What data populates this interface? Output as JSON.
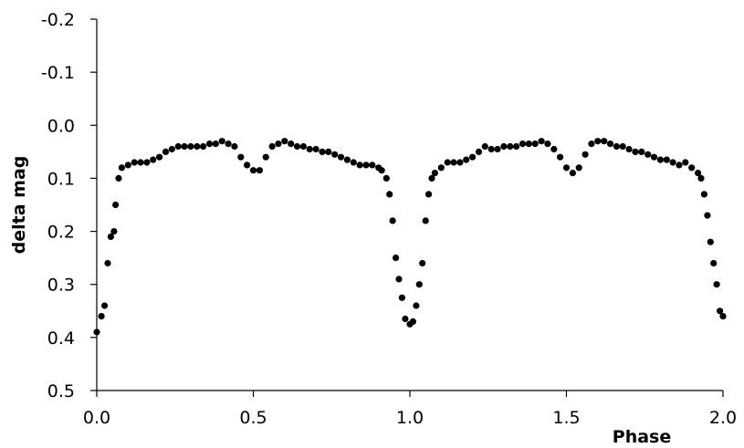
{
  "chart_data": {
    "type": "scatter",
    "title": "",
    "xlabel": "Phase",
    "ylabel": "delta mag",
    "xlim": [
      0.0,
      2.0
    ],
    "ylim": [
      -0.2,
      0.5
    ],
    "y_inverted": true,
    "grid": false,
    "legend": "none",
    "x_ticks": [
      "0.0",
      "0.5",
      "1.0",
      "1.5",
      "2.0"
    ],
    "x_tick_values": [
      0.0,
      0.5,
      1.0,
      1.5,
      2.0
    ],
    "y_ticks": [
      "-0.2",
      "-0.1",
      "0.0",
      "0.1",
      "0.2",
      "0.3",
      "0.4",
      "0.5"
    ],
    "y_tick_values": [
      -0.2,
      -0.1,
      0.0,
      0.1,
      0.2,
      0.3,
      0.4,
      0.5
    ],
    "marker_color": "#000000",
    "series": [
      {
        "points": [
          [
            0.0,
            0.39
          ],
          [
            0.015,
            0.36
          ],
          [
            0.025,
            0.34
          ],
          [
            0.035,
            0.26
          ],
          [
            0.045,
            0.21
          ],
          [
            0.055,
            0.2
          ],
          [
            0.06,
            0.15
          ],
          [
            0.07,
            0.1
          ],
          [
            0.08,
            0.08
          ],
          [
            0.1,
            0.075
          ],
          [
            0.12,
            0.07
          ],
          [
            0.14,
            0.07
          ],
          [
            0.16,
            0.07
          ],
          [
            0.18,
            0.065
          ],
          [
            0.2,
            0.06
          ],
          [
            0.22,
            0.05
          ],
          [
            0.24,
            0.045
          ],
          [
            0.26,
            0.04
          ],
          [
            0.28,
            0.04
          ],
          [
            0.3,
            0.04
          ],
          [
            0.32,
            0.04
          ],
          [
            0.34,
            0.04
          ],
          [
            0.36,
            0.035
          ],
          [
            0.38,
            0.035
          ],
          [
            0.4,
            0.03
          ],
          [
            0.42,
            0.035
          ],
          [
            0.44,
            0.04
          ],
          [
            0.46,
            0.06
          ],
          [
            0.48,
            0.075
          ],
          [
            0.5,
            0.085
          ],
          [
            0.52,
            0.085
          ],
          [
            0.54,
            0.06
          ],
          [
            0.56,
            0.04
          ],
          [
            0.58,
            0.035
          ],
          [
            0.6,
            0.03
          ],
          [
            0.62,
            0.035
          ],
          [
            0.64,
            0.04
          ],
          [
            0.66,
            0.04
          ],
          [
            0.68,
            0.045
          ],
          [
            0.7,
            0.045
          ],
          [
            0.72,
            0.05
          ],
          [
            0.74,
            0.05
          ],
          [
            0.76,
            0.055
          ],
          [
            0.78,
            0.06
          ],
          [
            0.8,
            0.065
          ],
          [
            0.82,
            0.07
          ],
          [
            0.84,
            0.075
          ],
          [
            0.86,
            0.075
          ],
          [
            0.88,
            0.075
          ],
          [
            0.9,
            0.08
          ],
          [
            0.91,
            0.085
          ],
          [
            0.925,
            0.1
          ],
          [
            0.935,
            0.13
          ],
          [
            0.945,
            0.18
          ],
          [
            0.955,
            0.25
          ],
          [
            0.965,
            0.29
          ],
          [
            0.975,
            0.325
          ],
          [
            0.985,
            0.365
          ],
          [
            1.0,
            0.375
          ],
          [
            1.01,
            0.37
          ],
          [
            1.02,
            0.34
          ],
          [
            1.03,
            0.3
          ],
          [
            1.04,
            0.26
          ],
          [
            1.05,
            0.18
          ],
          [
            1.06,
            0.13
          ],
          [
            1.07,
            0.1
          ],
          [
            1.08,
            0.09
          ],
          [
            1.1,
            0.08
          ],
          [
            1.12,
            0.07
          ],
          [
            1.14,
            0.07
          ],
          [
            1.16,
            0.07
          ],
          [
            1.18,
            0.065
          ],
          [
            1.2,
            0.06
          ],
          [
            1.22,
            0.05
          ],
          [
            1.24,
            0.04
          ],
          [
            1.26,
            0.045
          ],
          [
            1.28,
            0.045
          ],
          [
            1.3,
            0.04
          ],
          [
            1.32,
            0.04
          ],
          [
            1.34,
            0.04
          ],
          [
            1.36,
            0.035
          ],
          [
            1.38,
            0.035
          ],
          [
            1.4,
            0.035
          ],
          [
            1.42,
            0.03
          ],
          [
            1.44,
            0.035
          ],
          [
            1.46,
            0.045
          ],
          [
            1.48,
            0.06
          ],
          [
            1.5,
            0.08
          ],
          [
            1.52,
            0.09
          ],
          [
            1.54,
            0.08
          ],
          [
            1.56,
            0.055
          ],
          [
            1.58,
            0.035
          ],
          [
            1.6,
            0.03
          ],
          [
            1.62,
            0.03
          ],
          [
            1.64,
            0.035
          ],
          [
            1.66,
            0.04
          ],
          [
            1.68,
            0.04
          ],
          [
            1.7,
            0.045
          ],
          [
            1.72,
            0.05
          ],
          [
            1.74,
            0.05
          ],
          [
            1.76,
            0.055
          ],
          [
            1.78,
            0.06
          ],
          [
            1.8,
            0.065
          ],
          [
            1.82,
            0.065
          ],
          [
            1.84,
            0.07
          ],
          [
            1.86,
            0.075
          ],
          [
            1.88,
            0.07
          ],
          [
            1.9,
            0.08
          ],
          [
            1.92,
            0.09
          ],
          [
            1.93,
            0.1
          ],
          [
            1.94,
            0.13
          ],
          [
            1.95,
            0.17
          ],
          [
            1.96,
            0.22
          ],
          [
            1.97,
            0.26
          ],
          [
            1.98,
            0.3
          ],
          [
            1.99,
            0.35
          ],
          [
            2.0,
            0.36
          ]
        ]
      }
    ]
  }
}
